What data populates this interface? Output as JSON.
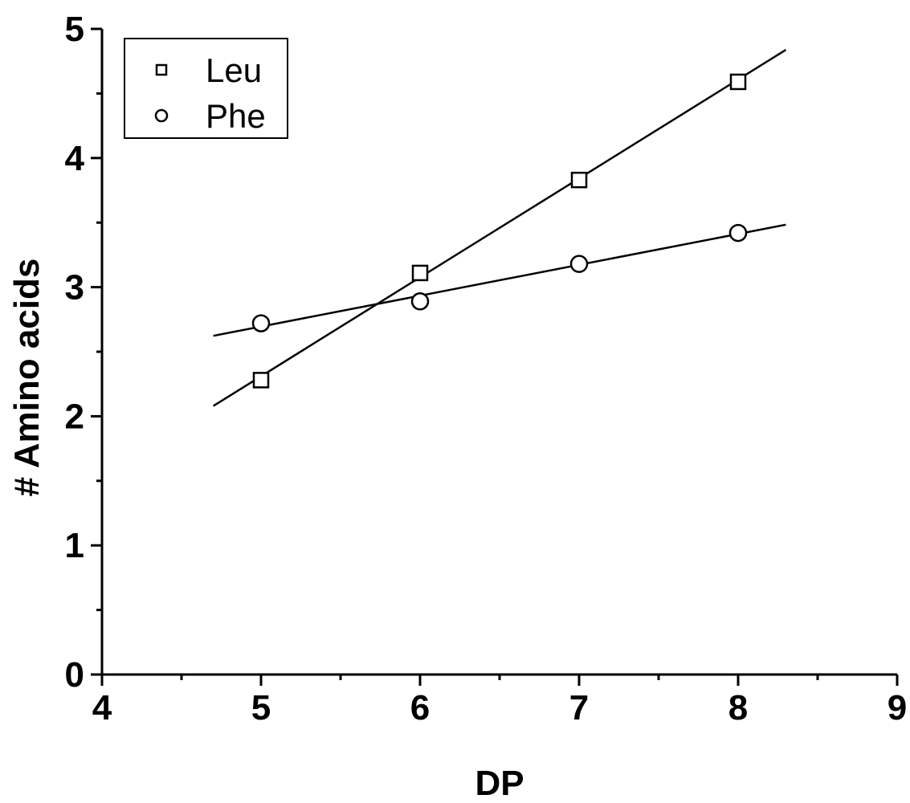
{
  "chart_data": {
    "type": "scatter",
    "xlabel": "DP",
    "ylabel": "# Amino acids",
    "xlim": [
      4,
      9
    ],
    "ylim": [
      0,
      5
    ],
    "x_ticks": [
      "4",
      "5",
      "6",
      "7",
      "8",
      "9"
    ],
    "y_ticks": [
      "0",
      "1",
      "2",
      "3",
      "4",
      "5"
    ],
    "grid": false,
    "legend_position": "top-left",
    "series": [
      {
        "name": "Leu",
        "marker": "square",
        "x": [
          5,
          6,
          7,
          8
        ],
        "y": [
          2.28,
          3.11,
          3.83,
          4.59
        ],
        "fit": {
          "slope": 0.766,
          "intercept": -1.52,
          "x_range": [
            4.7,
            8.3
          ]
        }
      },
      {
        "name": "Phe",
        "marker": "circle",
        "x": [
          5,
          6,
          7,
          8
        ],
        "y": [
          2.72,
          2.89,
          3.18,
          3.42
        ],
        "fit": {
          "slope": 0.239,
          "intercept": 1.5,
          "x_range": [
            4.7,
            8.3
          ]
        }
      }
    ]
  }
}
